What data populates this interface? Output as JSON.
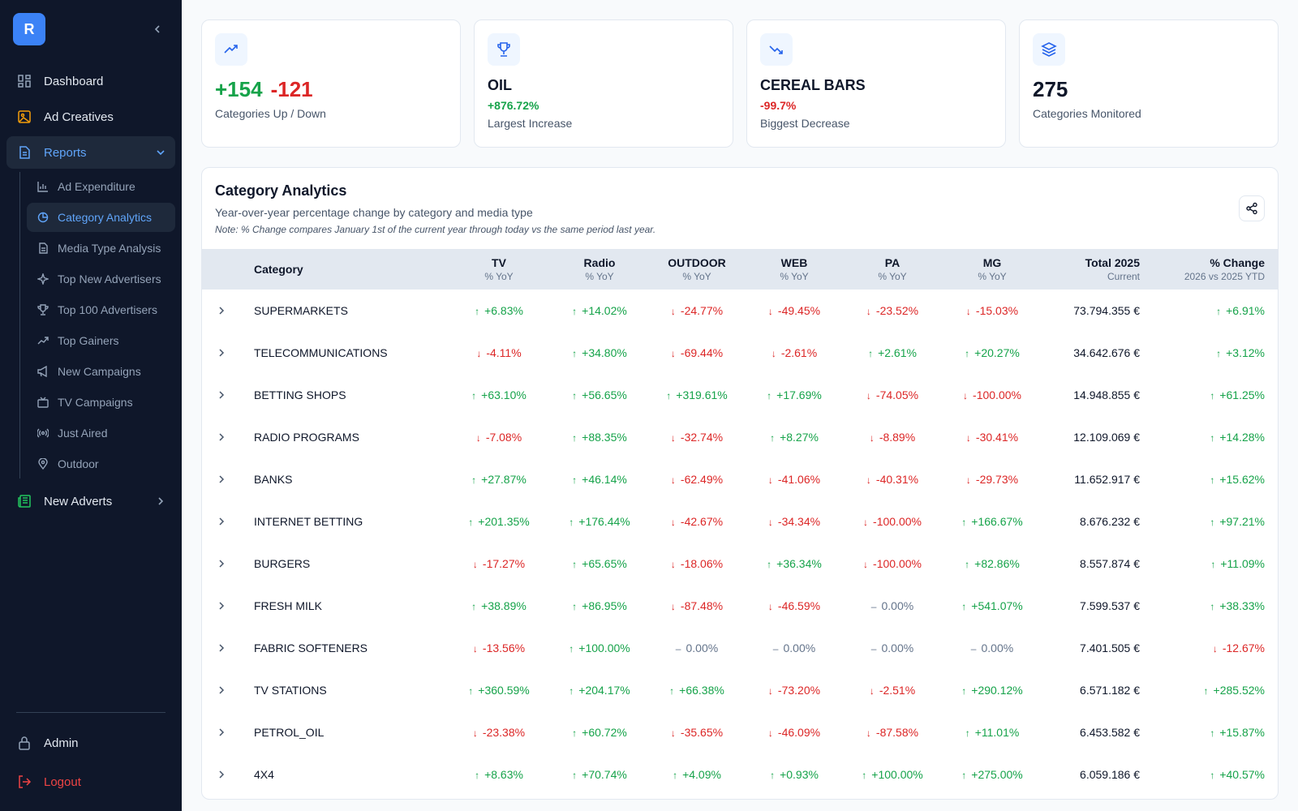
{
  "brand": {
    "logo_letter": "R",
    "accent": "#3b82f6"
  },
  "sidebar": {
    "items": [
      {
        "label": "Dashboard",
        "icon": "grid-icon"
      },
      {
        "label": "Ad Creatives",
        "icon": "image-icon"
      },
      {
        "label": "Reports",
        "icon": "file-text-icon",
        "expanded": true
      }
    ],
    "reports_sub": [
      {
        "label": "Ad Expenditure",
        "icon": "bar-chart-icon"
      },
      {
        "label": "Category Analytics",
        "icon": "pie-chart-icon",
        "active": true
      },
      {
        "label": "Media Type Analysis",
        "icon": "file-icon"
      },
      {
        "label": "Top New Advertisers",
        "icon": "sparkle-icon"
      },
      {
        "label": "Top 100 Advertisers",
        "icon": "trophy-icon"
      },
      {
        "label": "Top Gainers",
        "icon": "trending-up-icon"
      },
      {
        "label": "New Campaigns",
        "icon": "megaphone-icon"
      },
      {
        "label": "TV Campaigns",
        "icon": "tv-icon"
      },
      {
        "label": "Just Aired",
        "icon": "broadcast-icon"
      },
      {
        "label": "Outdoor",
        "icon": "map-pin-icon"
      }
    ],
    "new_adverts": {
      "label": "New Adverts",
      "icon": "newspaper-icon"
    },
    "admin": {
      "label": "Admin",
      "icon": "lock-icon"
    },
    "logout": {
      "label": "Logout",
      "icon": "logout-icon"
    }
  },
  "cards": {
    "up_down": {
      "up": "+154",
      "down": "-121",
      "label": "Categories Up / Down"
    },
    "largest_increase": {
      "name": "OIL",
      "pct": "+876.72%",
      "label": "Largest Increase"
    },
    "biggest_decrease": {
      "name": "CEREAL BARS",
      "pct": "-99.7%",
      "label": "Biggest Decrease"
    },
    "monitored": {
      "value": "275",
      "label": "Categories Monitored"
    }
  },
  "panel": {
    "title": "Category Analytics",
    "subtitle": "Year-over-year percentage change by category and media type",
    "note": "Note: % Change compares January 1st of the current year through today vs the same period last year."
  },
  "table": {
    "headers": {
      "category": "Category",
      "tv": "TV",
      "radio": "Radio",
      "outdoor": "OUTDOOR",
      "web": "WEB",
      "pa": "PA",
      "mg": "MG",
      "yoy": "% YoY",
      "total": "Total 2025",
      "total_sub": "Current",
      "change": "% Change",
      "change_sub": "2026 vs 2025 YTD"
    },
    "rows": [
      {
        "category": "SUPERMARKETS",
        "tv": "+6.83%",
        "radio": "+14.02%",
        "outdoor": "-24.77%",
        "web": "-49.45%",
        "pa": "-23.52%",
        "mg": "-15.03%",
        "total": "73.794.355 €",
        "change": "+6.91%"
      },
      {
        "category": "TELECOMMUNICATIONS",
        "tv": "-4.11%",
        "radio": "+34.80%",
        "outdoor": "-69.44%",
        "web": "-2.61%",
        "pa": "+2.61%",
        "mg": "+20.27%",
        "total": "34.642.676 €",
        "change": "+3.12%"
      },
      {
        "category": "BETTING SHOPS",
        "tv": "+63.10%",
        "radio": "+56.65%",
        "outdoor": "+319.61%",
        "web": "+17.69%",
        "pa": "-74.05%",
        "mg": "-100.00%",
        "total": "14.948.855 €",
        "change": "+61.25%"
      },
      {
        "category": "RADIO PROGRAMS",
        "tv": "-7.08%",
        "radio": "+88.35%",
        "outdoor": "-32.74%",
        "web": "+8.27%",
        "pa": "-8.89%",
        "mg": "-30.41%",
        "total": "12.109.069 €",
        "change": "+14.28%"
      },
      {
        "category": "BANKS",
        "tv": "+27.87%",
        "radio": "+46.14%",
        "outdoor": "-62.49%",
        "web": "-41.06%",
        "pa": "-40.31%",
        "mg": "-29.73%",
        "total": "11.652.917 €",
        "change": "+15.62%"
      },
      {
        "category": "INTERNET BETTING",
        "tv": "+201.35%",
        "radio": "+176.44%",
        "outdoor": "-42.67%",
        "web": "-34.34%",
        "pa": "-100.00%",
        "mg": "+166.67%",
        "total": "8.676.232 €",
        "change": "+97.21%"
      },
      {
        "category": "BURGERS",
        "tv": "-17.27%",
        "radio": "+65.65%",
        "outdoor": "-18.06%",
        "web": "+36.34%",
        "pa": "-100.00%",
        "mg": "+82.86%",
        "total": "8.557.874 €",
        "change": "+11.09%"
      },
      {
        "category": "FRESH MILK",
        "tv": "+38.89%",
        "radio": "+86.95%",
        "outdoor": "-87.48%",
        "web": "-46.59%",
        "pa": "0.00%",
        "mg": "+541.07%",
        "total": "7.599.537 €",
        "change": "+38.33%"
      },
      {
        "category": "FABRIC SOFTENERS",
        "tv": "-13.56%",
        "radio": "+100.00%",
        "outdoor": "0.00%",
        "web": "0.00%",
        "pa": "0.00%",
        "mg": "0.00%",
        "total": "7.401.505 €",
        "change": "-12.67%"
      },
      {
        "category": "TV STATIONS",
        "tv": "+360.59%",
        "radio": "+204.17%",
        "outdoor": "+66.38%",
        "web": "-73.20%",
        "pa": "-2.51%",
        "mg": "+290.12%",
        "total": "6.571.182 €",
        "change": "+285.52%"
      },
      {
        "category": "PETROL_OIL",
        "tv": "-23.38%",
        "radio": "+60.72%",
        "outdoor": "-35.65%",
        "web": "-46.09%",
        "pa": "-87.58%",
        "mg": "+11.01%",
        "total": "6.453.582 €",
        "change": "+15.87%"
      },
      {
        "category": "4X4",
        "tv": "+8.63%",
        "radio": "+70.74%",
        "outdoor": "+4.09%",
        "web": "+0.93%",
        "pa": "+100.00%",
        "mg": "+275.00%",
        "total": "6.059.186 €",
        "change": "+40.57%"
      }
    ]
  },
  "colors": {
    "positive": "#16a34a",
    "negative": "#dc2626",
    "neutral": "#64748b",
    "sidebar_bg": "#0f172a"
  }
}
